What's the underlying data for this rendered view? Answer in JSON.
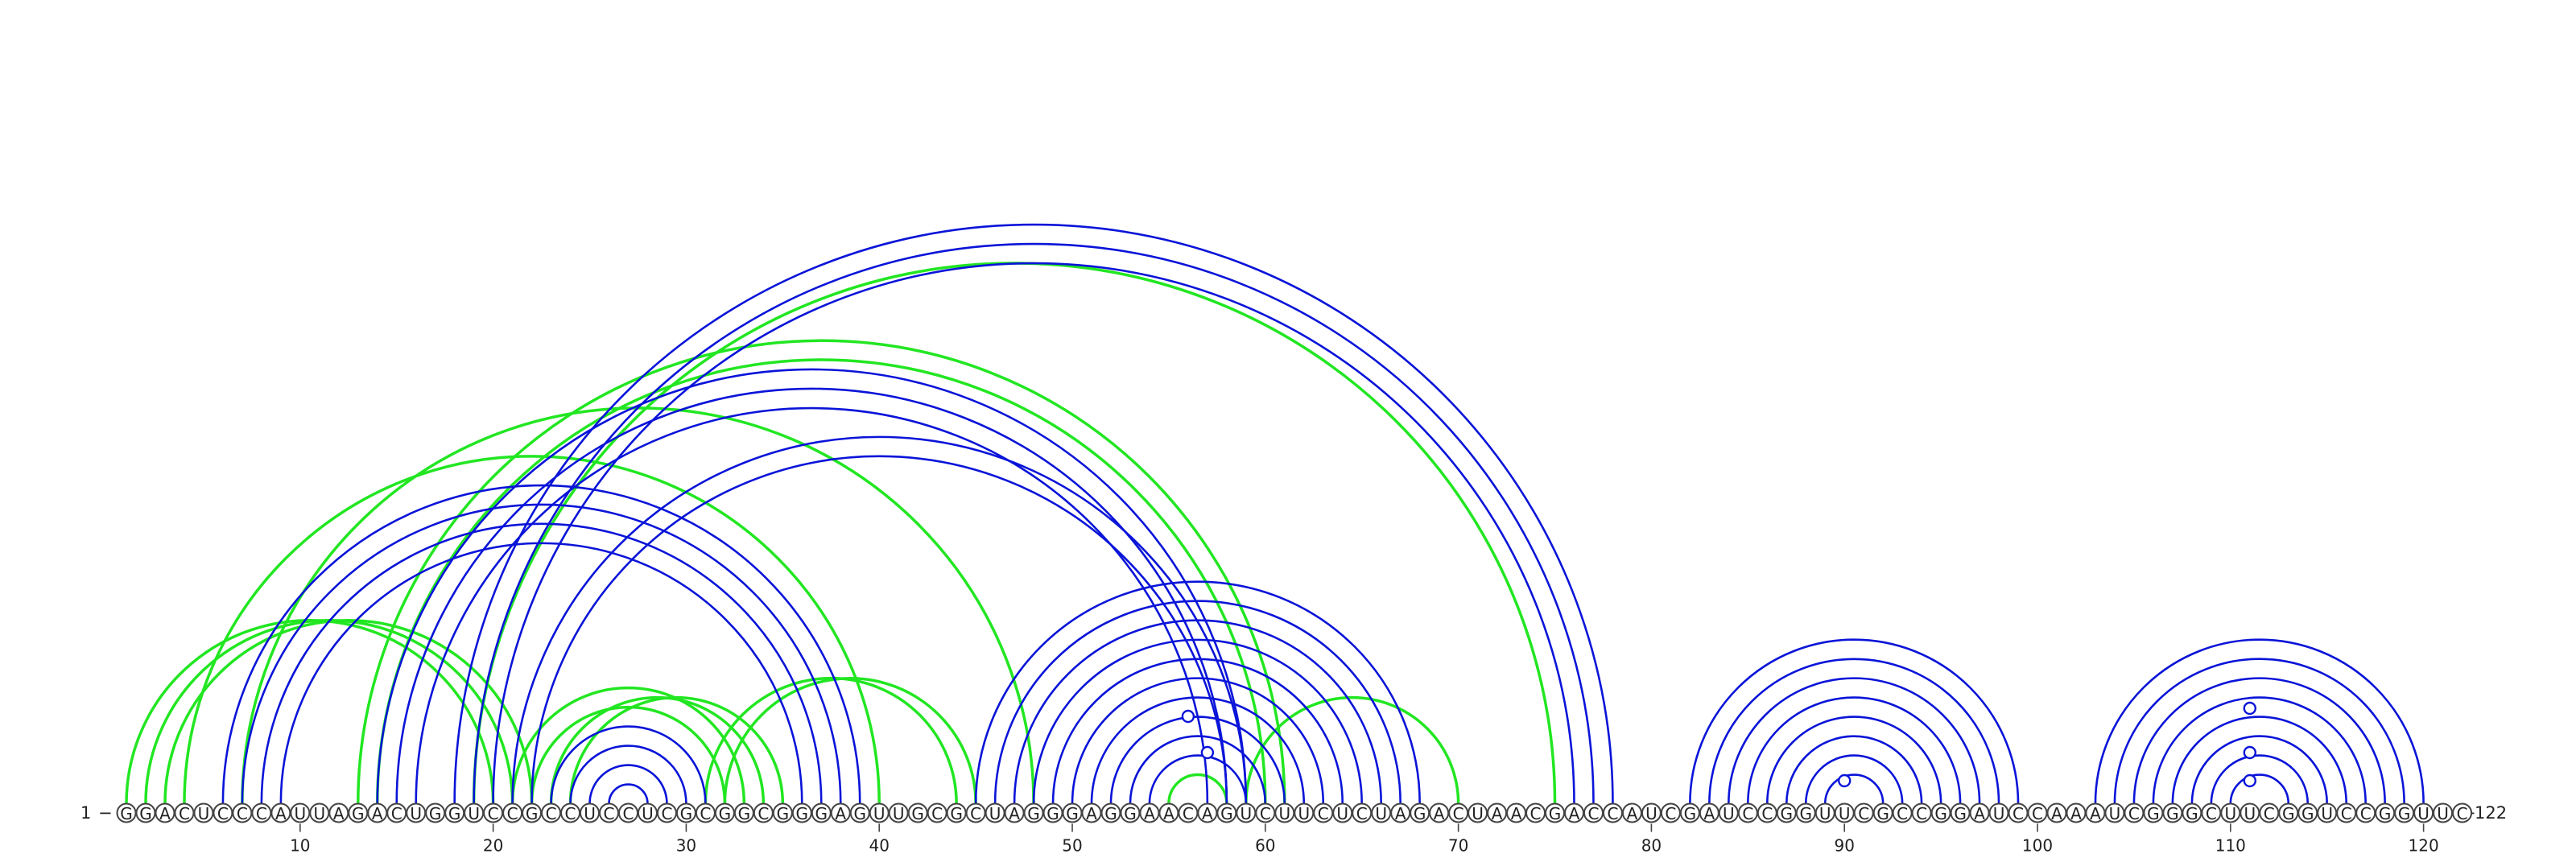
{
  "sequence": "GGACUCCCAUUAGACUGGUCCGCCUCCUCGCGGCGGGAGUUGCGCUAGGGAGGAACAGUCUUCUCUAGACUAACGACCAUCGAUCCGGUUCGCCGGAUCCAAAUCGGGCUUCGGUCCGGUUC",
  "start_label": "1",
  "end_label": "122",
  "ticks": [
    10,
    20,
    30,
    40,
    50,
    60,
    70,
    80,
    90,
    100,
    110,
    120
  ],
  "colors": {
    "blue_arcs": "#0a14d8",
    "green_arcs": "#22e622",
    "backbone": "#444444"
  },
  "arcs": {
    "blue": [
      [
        6,
        39
      ],
      [
        7,
        38
      ],
      [
        8,
        37
      ],
      [
        9,
        36
      ],
      [
        14,
        59
      ],
      [
        15,
        58
      ],
      [
        16,
        57
      ],
      [
        18,
        78
      ],
      [
        19,
        77
      ],
      [
        20,
        76
      ],
      [
        21,
        59
      ],
      [
        22,
        58
      ],
      [
        23,
        31
      ],
      [
        24,
        30
      ],
      [
        25,
        29
      ],
      [
        26,
        28
      ],
      [
        45,
        68
      ],
      [
        46,
        67
      ],
      [
        47,
        66
      ],
      [
        48,
        65
      ],
      [
        49,
        64
      ],
      [
        50,
        63
      ],
      [
        51,
        62
      ],
      [
        52,
        61
      ],
      [
        53,
        60
      ],
      [
        54,
        59
      ],
      [
        82,
        99
      ],
      [
        83,
        98
      ],
      [
        84,
        97
      ],
      [
        85,
        96
      ],
      [
        86,
        95
      ],
      [
        87,
        94
      ],
      [
        88,
        93
      ],
      [
        89,
        92
      ],
      [
        103,
        120
      ],
      [
        104,
        119
      ],
      [
        105,
        118
      ],
      [
        106,
        117
      ],
      [
        107,
        116
      ],
      [
        108,
        115
      ],
      [
        109,
        114
      ],
      [
        110,
        113
      ]
    ],
    "green": [
      [
        1,
        20
      ],
      [
        2,
        21
      ],
      [
        3,
        22
      ],
      [
        4,
        40
      ],
      [
        7,
        48
      ],
      [
        13,
        61
      ],
      [
        14,
        60
      ],
      [
        19,
        75
      ],
      [
        21,
        33
      ],
      [
        22,
        32
      ],
      [
        23,
        34
      ],
      [
        24,
        35
      ],
      [
        31,
        44
      ],
      [
        32,
        45
      ],
      [
        55,
        58
      ],
      [
        59,
        70
      ]
    ],
    "blue_circle_markers": [
      [
        56,
        57
      ],
      [
        57,
        58
      ],
      [
        90,
        91
      ],
      [
        111,
        112
      ],
      [
        111,
        112
      ],
      [
        111,
        112
      ]
    ]
  }
}
